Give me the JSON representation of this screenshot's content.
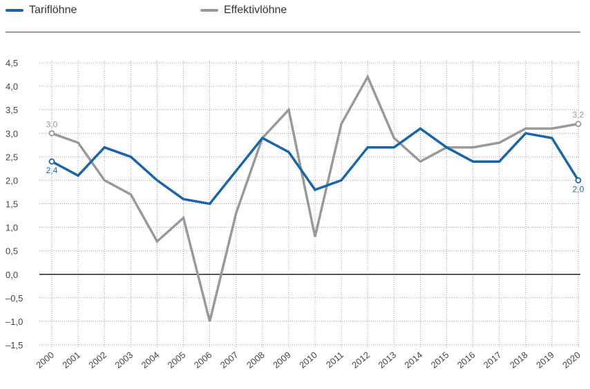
{
  "legend": {
    "item1": "Tariflöhne",
    "item2": "Effektivlöhne"
  },
  "colors": {
    "tarif": "#1a64a8",
    "effektiv": "#999999",
    "grid": "#999999",
    "zero": "#222222"
  },
  "chart_data": {
    "type": "line",
    "x": [
      "2000",
      "2001",
      "2002",
      "2003",
      "2004",
      "2005",
      "2006",
      "2007",
      "2008",
      "2009",
      "2010",
      "2011",
      "2012",
      "2013",
      "2014",
      "2015",
      "2016",
      "2017",
      "2018",
      "2019",
      "2020"
    ],
    "y_ticks": [
      "4,5",
      "4,0",
      "3,5",
      "3,0",
      "2,5",
      "2,0",
      "1,5",
      "1,0",
      "0,5",
      "0,0",
      "–0,5",
      "–1,0",
      "–1,5"
    ],
    "ylim": [
      -1.5,
      4.5
    ],
    "grid": true,
    "legend_position": "top-left",
    "series": [
      {
        "name": "Tariflöhne",
        "values": [
          2.4,
          2.1,
          2.7,
          2.5,
          2.0,
          1.6,
          1.5,
          2.2,
          2.9,
          2.6,
          1.8,
          2.0,
          2.7,
          2.7,
          3.1,
          2.7,
          2.4,
          2.4,
          3.0,
          2.9,
          2.0
        ],
        "labels": {
          "first": "2,4",
          "last": "2,0"
        }
      },
      {
        "name": "Effektivlöhne",
        "values": [
          3.0,
          2.8,
          2.0,
          1.7,
          0.7,
          1.2,
          -1.0,
          1.3,
          2.9,
          3.5,
          0.8,
          3.2,
          4.2,
          2.9,
          2.4,
          2.7,
          2.7,
          2.8,
          3.1,
          3.1,
          3.2
        ],
        "labels": {
          "first": "3,0",
          "last": "3,2"
        }
      }
    ]
  }
}
